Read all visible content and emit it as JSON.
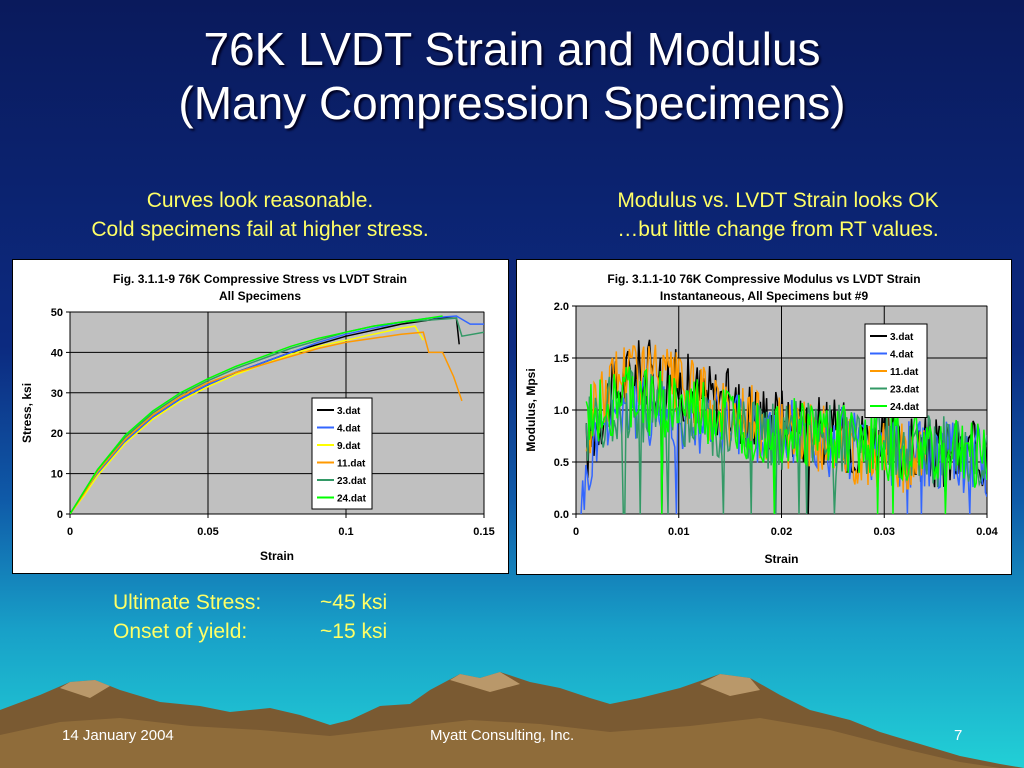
{
  "slide": {
    "title_line1": "76K LVDT Strain and Modulus",
    "title_line2": "(Many Compression Specimens)",
    "left_caption_line1": "Curves look reasonable.",
    "left_caption_line2": "Cold specimens fail at higher stress.",
    "right_caption_line1": "Modulus vs. LVDT Strain looks OK",
    "right_caption_line2": "…but little change from RT values.",
    "summary": [
      {
        "label": "Ultimate Stress:",
        "value": "~45 ksi"
      },
      {
        "label": "Onset of yield:",
        "value": "~15 ksi"
      }
    ],
    "footer": {
      "date": "14 January 2004",
      "company": "Myatt Consulting, Inc.",
      "page": "7"
    }
  },
  "colors": {
    "accent_text": "#ffff66",
    "plot_bg": "#c0c0c0",
    "series": {
      "3.dat": "#000000",
      "4.dat": "#3366ff",
      "9.dat": "#ffff00",
      "11.dat": "#ff9900",
      "23.dat": "#339966",
      "24.dat": "#00ff00"
    }
  },
  "chart_data": [
    {
      "type": "line",
      "title": "Fig. 3.1.1-9 76K Compressive Stress vs LVDT Strain",
      "subtitle": "All Specimens",
      "xlabel": "Strain",
      "ylabel": "Stress, ksi",
      "xlim": [
        0,
        0.15
      ],
      "ylim": [
        0,
        50
      ],
      "xticks": [
        0,
        0.05,
        0.1,
        0.15
      ],
      "xtick_labels": [
        "0",
        "0.05",
        "0.1",
        "0.15"
      ],
      "yticks": [
        0,
        10,
        20,
        30,
        40,
        50
      ],
      "ytick_labels": [
        "0",
        "10",
        "20",
        "30",
        "40",
        "50"
      ],
      "grid": true,
      "legend": "center-right",
      "series": [
        {
          "name": "3.dat",
          "x": [
            0,
            0.005,
            0.01,
            0.02,
            0.03,
            0.04,
            0.05,
            0.06,
            0.07,
            0.08,
            0.09,
            0.1,
            0.11,
            0.12,
            0.13,
            0.135,
            0.14,
            0.141
          ],
          "y": [
            0,
            5,
            10,
            18,
            24,
            28.5,
            32,
            35,
            37.5,
            40,
            42,
            44,
            45.5,
            47,
            48,
            48.5,
            48.5,
            42
          ]
        },
        {
          "name": "4.dat",
          "x": [
            0,
            0.005,
            0.01,
            0.02,
            0.03,
            0.04,
            0.05,
            0.06,
            0.07,
            0.08,
            0.09,
            0.1,
            0.11,
            0.12,
            0.13,
            0.14,
            0.145,
            0.15
          ],
          "y": [
            0,
            5,
            10,
            18,
            24,
            28.5,
            32,
            35,
            37.5,
            40,
            42.5,
            44.5,
            46,
            47.5,
            48.5,
            49,
            47,
            47
          ]
        },
        {
          "name": "9.dat",
          "x": [
            0,
            0.005,
            0.01,
            0.02,
            0.03,
            0.04,
            0.05,
            0.06,
            0.07,
            0.08,
            0.09,
            0.1,
            0.11,
            0.12,
            0.125,
            0.128
          ],
          "y": [
            0,
            4.5,
            9.5,
            17.5,
            23.5,
            28,
            31.5,
            34.5,
            37,
            39.5,
            41.5,
            43,
            44.5,
            46,
            46.5,
            43
          ]
        },
        {
          "name": "11.dat",
          "x": [
            0,
            0.005,
            0.01,
            0.02,
            0.03,
            0.04,
            0.05,
            0.06,
            0.07,
            0.08,
            0.09,
            0.1,
            0.11,
            0.12,
            0.128,
            0.13,
            0.135,
            0.139,
            0.142
          ],
          "y": [
            0,
            5,
            10.5,
            18.5,
            24.5,
            29,
            32.5,
            35,
            37,
            39,
            41,
            42.5,
            43.5,
            44.5,
            45,
            40,
            40,
            34,
            28
          ]
        },
        {
          "name": "23.dat",
          "x": [
            0,
            0.005,
            0.01,
            0.02,
            0.03,
            0.04,
            0.05,
            0.06,
            0.07,
            0.08,
            0.09,
            0.1,
            0.11,
            0.12,
            0.13,
            0.14,
            0.142,
            0.15
          ],
          "y": [
            0,
            5.5,
            11,
            19,
            25,
            29.5,
            33,
            36,
            38.5,
            41,
            43,
            45,
            46.5,
            47.5,
            48,
            48.5,
            44,
            45
          ]
        },
        {
          "name": "24.dat",
          "x": [
            0,
            0.005,
            0.01,
            0.02,
            0.03,
            0.04,
            0.05,
            0.06,
            0.07,
            0.08,
            0.09,
            0.1,
            0.11,
            0.12,
            0.13,
            0.135
          ],
          "y": [
            0,
            5.5,
            11,
            19.5,
            25.5,
            30,
            33.5,
            36.5,
            39,
            41.5,
            43.5,
            45,
            46.5,
            47.5,
            48.5,
            49
          ]
        }
      ]
    },
    {
      "type": "line",
      "title": "Fig. 3.1.1-10 76K Compressive Modulus vs LVDT Strain",
      "subtitle": "Instantaneous, All Specimens but #9",
      "xlabel": "Strain",
      "ylabel": "Modulus, Mpsi",
      "xlim": [
        0,
        0.04
      ],
      "ylim": [
        0,
        2
      ],
      "xticks": [
        0,
        0.01,
        0.02,
        0.03,
        0.04
      ],
      "xtick_labels": [
        "0",
        "0.01",
        "0.02",
        "0.03",
        "0.04"
      ],
      "yticks": [
        0,
        0.5,
        1.0,
        1.5,
        2.0
      ],
      "ytick_labels": [
        "0.0",
        "0.5",
        "1.0",
        "1.5",
        "2.0"
      ],
      "grid": true,
      "legend": "top-right",
      "series": [
        {
          "name": "3.dat",
          "x": [
            0.001,
            0.002,
            0.003,
            0.004,
            0.005,
            0.006,
            0.007,
            0.008,
            0.009,
            0.01,
            0.012,
            0.014,
            0.016,
            0.018,
            0.02,
            0.022,
            0.024,
            0.026,
            0.028,
            0.03,
            0.032,
            0.034,
            0.036,
            0.038,
            0.04
          ],
          "y": [
            0.6,
            0.9,
            1.1,
            1.2,
            1.3,
            1.35,
            1.35,
            1.3,
            1.3,
            1.25,
            1.15,
            1.1,
            1.0,
            0.95,
            0.9,
            0.85,
            0.8,
            0.75,
            0.7,
            0.65,
            0.6,
            0.6,
            0.55,
            0.55,
            0.55
          ]
        },
        {
          "name": "4.dat",
          "x": [
            0.0005,
            0.001,
            0.002,
            0.003,
            0.004,
            0.005,
            0.006,
            0.008,
            0.01,
            0.012,
            0.014,
            0.016,
            0.018,
            0.02,
            0.022,
            0.024,
            0.026,
            0.028,
            0.03,
            0.032,
            0.034,
            0.036,
            0.038,
            0.04
          ],
          "y": [
            0.1,
            0.3,
            0.8,
            1.0,
            1.05,
            1.05,
            1.0,
            1.0,
            0.95,
            0.9,
            0.85,
            0.85,
            0.8,
            0.75,
            0.75,
            0.7,
            0.7,
            0.65,
            0.6,
            0.6,
            0.55,
            0.55,
            0.55,
            0.5
          ]
        },
        {
          "name": "11.dat",
          "x": [
            0.001,
            0.002,
            0.003,
            0.004,
            0.005,
            0.006,
            0.007,
            0.008,
            0.01,
            0.012,
            0.014,
            0.016,
            0.018,
            0.02,
            0.022,
            0.024,
            0.026,
            0.028,
            0.03,
            0.032,
            0.034
          ],
          "y": [
            0.7,
            1.0,
            1.2,
            1.35,
            1.4,
            1.4,
            1.35,
            1.3,
            1.2,
            1.1,
            1.0,
            0.95,
            0.85,
            0.8,
            0.75,
            0.7,
            0.65,
            0.6,
            0.6,
            0.55,
            0.55
          ]
        },
        {
          "name": "23.dat",
          "x": [
            0.001,
            0.002,
            0.004,
            0.006,
            0.008,
            0.01,
            0.012,
            0.014,
            0.016,
            0.018,
            0.02,
            0.022,
            0.024,
            0.026,
            0.028,
            0.03,
            0.032,
            0.034,
            0.036,
            0.038,
            0.04
          ],
          "y": [
            0.8,
            0.95,
            1.05,
            1.05,
            1.0,
            0.95,
            0.9,
            0.85,
            0.8,
            0.8,
            0.75,
            0.75,
            0.7,
            0.7,
            0.65,
            0.65,
            0.6,
            0.6,
            0.6,
            0.55,
            0.55
          ]
        },
        {
          "name": "24.dat",
          "x": [
            0.001,
            0.002,
            0.004,
            0.006,
            0.008,
            0.01,
            0.012,
            0.014,
            0.016,
            0.018,
            0.02,
            0.022,
            0.024,
            0.026,
            0.028,
            0.03,
            0.032,
            0.034,
            0.036,
            0.038,
            0.04
          ],
          "y": [
            0.85,
            1.0,
            1.1,
            1.1,
            1.05,
            1.0,
            0.95,
            0.9,
            0.85,
            0.8,
            0.8,
            0.75,
            0.75,
            0.7,
            0.7,
            0.65,
            0.65,
            0.6,
            0.6,
            0.6,
            0.55
          ]
        }
      ]
    }
  ]
}
